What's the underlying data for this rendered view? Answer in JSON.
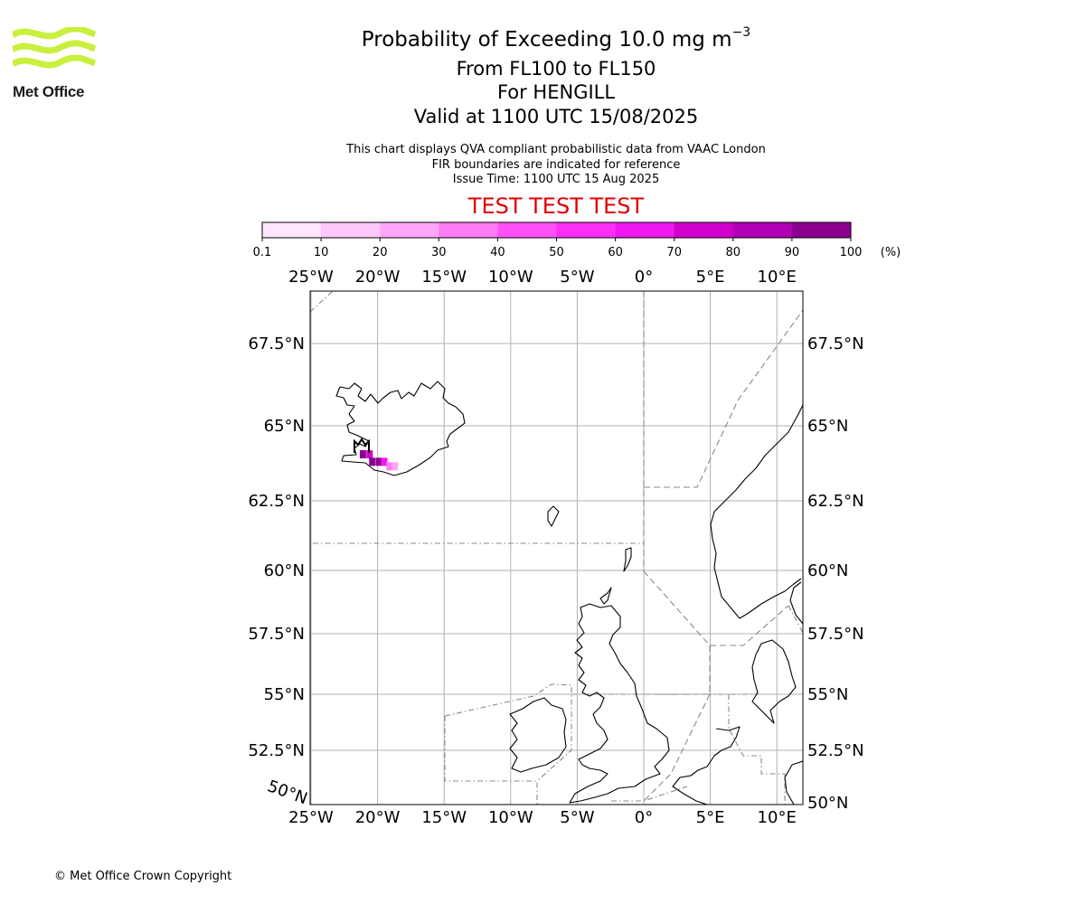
{
  "logo": {
    "text": "Met Office",
    "color": "#c8f03c"
  },
  "title": {
    "main": "Probability of Exceeding 10.0 mg m",
    "exponent": "−3"
  },
  "subtitle": {
    "levels": "From FL100 to FL150",
    "location": "For HENGILL",
    "valid": "Valid at 1100 UTC 15/08/2025"
  },
  "info": {
    "line1": "This chart displays QVA compliant probabilistic data from VAAC London",
    "line2": "FIR boundaries are indicated for reference",
    "line3": "Issue Time: 1100 UTC 15 Aug 2025"
  },
  "test_banner": {
    "text": "TEST TEST TEST",
    "color": "#e00000"
  },
  "colorbar": {
    "ticks": [
      "0.1",
      "10",
      "20",
      "30",
      "40",
      "50",
      "60",
      "70",
      "80",
      "90",
      "100"
    ],
    "unit": "(%)",
    "colors": [
      "#ffe6ff",
      "#ffc8fa",
      "#ffa6f8",
      "#ff7cf6",
      "#ff50f8",
      "#ff30f6",
      "#f018f0",
      "#cf00cc",
      "#b000b4",
      "#8c0090",
      "#6a0068"
    ]
  },
  "map": {
    "lon_labels": [
      "25°W",
      "20°W",
      "15°W",
      "10°W",
      "5°W",
      "0°",
      "5°E",
      "10°E"
    ],
    "lat_labels": [
      "67.5°N",
      "65°N",
      "62.5°N",
      "60°N",
      "57.5°N",
      "55°N",
      "52.5°N",
      "50°N"
    ],
    "lat_label_left_rotated": "50°N",
    "grid_lons": [
      -25,
      -20,
      -15,
      -10,
      -5,
      0,
      5,
      10
    ],
    "grid_lats": [
      67.5,
      65,
      62.5,
      60,
      57.5,
      55,
      52.5
    ],
    "probability_cells": [
      {
        "lon": -21.1,
        "lat": 64.05,
        "value": 95
      },
      {
        "lon": -20.6,
        "lat": 64.05,
        "value": 75
      },
      {
        "lon": -20.4,
        "lat": 63.8,
        "value": 90
      },
      {
        "lon": -19.9,
        "lat": 63.8,
        "value": 95
      },
      {
        "lon": -19.5,
        "lat": 63.8,
        "value": 65
      },
      {
        "lon": -19.1,
        "lat": 63.65,
        "value": 35
      },
      {
        "lon": -18.7,
        "lat": 63.65,
        "value": 20
      }
    ]
  },
  "copyright": "© Met Office Crown Copyright"
}
